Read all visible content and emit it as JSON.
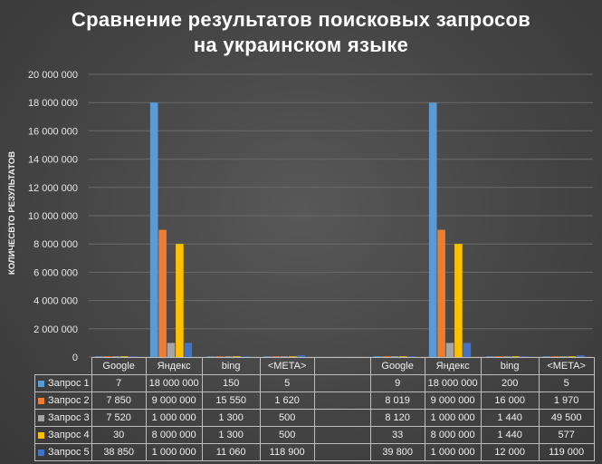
{
  "chart_data": {
    "type": "bar",
    "title_lines": [
      "Сравнение результатов поисковых запросов",
      "на украинском языке"
    ],
    "ylabel": "КОЛИЧЕСВТО РЕЗУЛЬТАТОВ",
    "ylim": [
      0,
      20000000
    ],
    "y_ticks": [
      "0",
      "2 000 000",
      "4 000 000",
      "6 000 000",
      "8 000 000",
      "10 000 000",
      "12 000 000",
      "14 000 000",
      "16 000 000",
      "18 000 000",
      "20 000 000"
    ],
    "grid": true,
    "legend": "data-table",
    "categories": [
      "Google",
      "Яндекс",
      "bing",
      "<META>",
      "",
      "Google",
      "Яндекс",
      "bing",
      "<META>"
    ],
    "series": [
      {
        "name": "Запрос 1",
        "color": "#5B9BD5",
        "values": [
          7,
          18000000,
          150,
          5,
          null,
          9,
          18000000,
          200,
          5
        ],
        "labels": [
          "7",
          "18 000 000",
          "150",
          "5",
          "",
          "9",
          "18 000 000",
          "200",
          "5"
        ]
      },
      {
        "name": "Запрос 2",
        "color": "#ED7D31",
        "values": [
          7850,
          9000000,
          15550,
          1620,
          null,
          8019,
          9000000,
          16000,
          1970
        ],
        "labels": [
          "7 850",
          "9 000 000",
          "15 550",
          "1 620",
          "",
          "8 019",
          "9 000 000",
          "16 000",
          "1 970"
        ]
      },
      {
        "name": "Запрос 3",
        "color": "#A5A5A5",
        "values": [
          7520,
          1000000,
          1300,
          500,
          null,
          8120,
          1000000,
          1440,
          49500
        ],
        "labels": [
          "7 520",
          "1 000 000",
          "1 300",
          "500",
          "",
          "8 120",
          "1 000 000",
          "1 440",
          "49 500"
        ]
      },
      {
        "name": "Запрос 4",
        "color": "#FFC000",
        "values": [
          30,
          8000000,
          1300,
          500,
          null,
          33,
          8000000,
          1440,
          577
        ],
        "labels": [
          "30",
          "8 000 000",
          "1 300",
          "500",
          "",
          "33",
          "8 000 000",
          "1 440",
          "577"
        ]
      },
      {
        "name": "Запрос 5",
        "color": "#4472C4",
        "values": [
          38850,
          1000000,
          11060,
          118900,
          null,
          39800,
          1000000,
          12000,
          119000
        ],
        "labels": [
          "38 850",
          "1 000 000",
          "11 060",
          "118 900",
          "",
          "39 800",
          "1 000 000",
          "12 000",
          "119 000"
        ]
      }
    ]
  }
}
